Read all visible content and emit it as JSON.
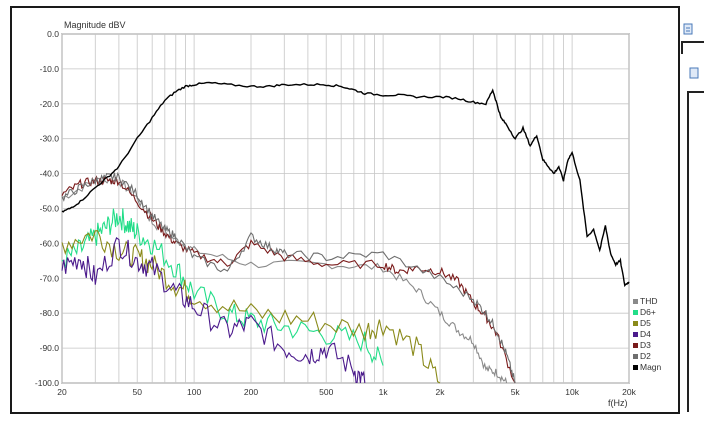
{
  "chart_data": {
    "type": "line",
    "title": "Magnitude dBV",
    "xlabel": "f(Hz)",
    "ylabel": "",
    "x_scale": "log",
    "xlim": [
      20,
      20000
    ],
    "ylim": [
      -100,
      0
    ],
    "grid": true,
    "legend_position": "bottom-right",
    "y_ticks": [
      0,
      -10,
      -20,
      -30,
      -40,
      -50,
      -60,
      -70,
      -80,
      -90,
      -100
    ],
    "y_tick_labels": [
      "0.0",
      "-10.0",
      "-20.0",
      "-30.0",
      "-40.0",
      "-50.0",
      "-60.0",
      "-70.0",
      "-80.0",
      "-90.0",
      "-100.0"
    ],
    "x_ticks": [
      20,
      50,
      100,
      200,
      500,
      1000,
      2000,
      5000,
      10000,
      20000
    ],
    "x_tick_labels": [
      "20",
      "50",
      "100",
      "200",
      "500",
      "1k",
      "2k",
      "5k",
      "10k",
      "20k"
    ],
    "series": [
      {
        "name": "Magn",
        "color": "#000000",
        "x": [
          20,
          22,
          25,
          30,
          35,
          40,
          50,
          60,
          70,
          80,
          90,
          100,
          120,
          150,
          200,
          250,
          300,
          400,
          500,
          600,
          700,
          800,
          1000,
          1200,
          1500,
          2000,
          2500,
          3000,
          3500,
          3800,
          4000,
          4200,
          4500,
          5000,
          5500,
          6000,
          6500,
          7000,
          7500,
          8000,
          8500,
          9000,
          9500,
          10000,
          11000,
          12000,
          13000,
          14000,
          15000,
          16000,
          17000,
          18000,
          19000,
          20000
        ],
        "y": [
          -51,
          -50,
          -48,
          -44,
          -41,
          -38,
          -30,
          -24,
          -19,
          -16.5,
          -15,
          -14.5,
          -14,
          -14.5,
          -15,
          -15,
          -14.5,
          -14.5,
          -14.5,
          -15,
          -16,
          -17,
          -17.5,
          -17.5,
          -18,
          -18,
          -18.5,
          -19.5,
          -20,
          -16,
          -20,
          -24,
          -26,
          -30,
          -27,
          -32,
          -29,
          -36,
          -38,
          -40,
          -38,
          -42,
          -36,
          -34,
          -42,
          -58,
          -56,
          -62,
          -55,
          -63,
          -66,
          -65,
          -72,
          -71
        ]
      },
      {
        "name": "D2",
        "color": "#6e6e6e",
        "x": [
          20,
          25,
          30,
          35,
          40,
          50,
          60,
          70,
          80,
          100,
          150,
          200,
          250,
          300,
          500,
          1000,
          2000,
          3000,
          3500,
          4000,
          4500,
          5000
        ],
        "y": [
          -47,
          -44,
          -42,
          -41,
          -41,
          -46,
          -52,
          -56,
          -58,
          -64,
          -68,
          -58,
          -61,
          -63,
          -64,
          -63,
          -70,
          -76,
          -80,
          -85,
          -92,
          -100
        ]
      },
      {
        "name": "D3",
        "color": "#7a1b1b",
        "x": [
          20,
          25,
          30,
          35,
          40,
          50,
          60,
          70,
          80,
          100,
          150,
          200,
          300,
          500,
          1000,
          1200,
          1500,
          2000,
          2500,
          3000,
          3500,
          4000,
          5000
        ],
        "y": [
          -46,
          -43,
          -42,
          -42,
          -42,
          -48,
          -53,
          -57,
          -60,
          -63,
          -66,
          -60,
          -64,
          -66,
          -66,
          -68,
          -67,
          -68,
          -71,
          -77,
          -81,
          -86,
          -100
        ]
      },
      {
        "name": "D4",
        "color": "#4b1a8c",
        "x": [
          20,
          25,
          30,
          40,
          50,
          60,
          80,
          100,
          150,
          200,
          300,
          400,
          500,
          700,
          800
        ],
        "y": [
          -67,
          -64,
          -70,
          -60,
          -65,
          -67,
          -74,
          -78,
          -85,
          -83,
          -90,
          -92,
          -90,
          -96,
          -100
        ]
      },
      {
        "name": "D5",
        "color": "#8a8a1a",
        "x": [
          20,
          30,
          40,
          50,
          60,
          80,
          100,
          200,
          400,
          800,
          1000,
          1500,
          2000
        ],
        "y": [
          -60,
          -57,
          -62,
          -64,
          -66,
          -72,
          -75,
          -80,
          -82,
          -85,
          -83,
          -90,
          -100
        ]
      },
      {
        "name": "D6+",
        "color": "#22dd88",
        "x": [
          20,
          25,
          30,
          35,
          40,
          45,
          50,
          60,
          80,
          100,
          150,
          200,
          300,
          500,
          800,
          1000
        ],
        "y": [
          -65,
          -62,
          -58,
          -55,
          -52,
          -55,
          -57,
          -60,
          -67,
          -74,
          -80,
          -82,
          -84,
          -86,
          -88,
          -95
        ]
      },
      {
        "name": "THD",
        "color": "#8a8a8a",
        "x": [
          20,
          30,
          40,
          50,
          60,
          80,
          100,
          200,
          500,
          1000,
          1500,
          2000,
          2500,
          3000,
          3500,
          4000,
          4500
        ],
        "y": [
          -47,
          -42,
          -42,
          -47,
          -54,
          -59,
          -62,
          -66,
          -66,
          -67,
          -73,
          -80,
          -85,
          -88,
          -96,
          -97,
          -100
        ]
      }
    ]
  }
}
